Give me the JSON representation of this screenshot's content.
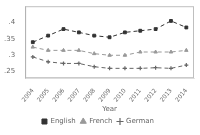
{
  "chart_data": {
    "type": "line",
    "xlabel": "Year",
    "x": [
      2004,
      2005,
      2006,
      2007,
      2008,
      2009,
      2010,
      2011,
      2012,
      2013,
      2014
    ],
    "series": [
      {
        "name": "English",
        "color": "#333333",
        "marker": "square",
        "line_style": "dashed",
        "values": [
          0.34,
          0.36,
          0.38,
          0.37,
          0.36,
          0.355,
          0.37,
          0.375,
          0.38,
          0.405,
          0.385
        ]
      },
      {
        "name": "French",
        "color": "#999999",
        "marker": "triangle",
        "line_style": "dashed",
        "values": [
          0.325,
          0.315,
          0.315,
          0.315,
          0.305,
          0.3,
          0.3,
          0.31,
          0.31,
          0.31,
          0.315
        ]
      },
      {
        "name": "German",
        "color": "#666666",
        "marker": "plus",
        "line_style": "dashed",
        "values": [
          0.295,
          0.28,
          0.275,
          0.275,
          0.265,
          0.26,
          0.26,
          0.26,
          0.262,
          0.26,
          0.27
        ]
      }
    ],
    "xlim": [
      2003.5,
      2014.5
    ],
    "xticks": [
      2004,
      2005,
      2006,
      2007,
      2008,
      2009,
      2010,
      2011,
      2012,
      2013,
      2014
    ],
    "ylim": [
      0.23,
      0.45
    ],
    "yticks": [
      {
        "value": 0.25,
        "label": ".25"
      },
      {
        "value": 0.3,
        "label": ".3"
      },
      {
        "value": 0.35,
        "label": ".35"
      },
      {
        "value": 0.4,
        "label": ".4"
      }
    ],
    "grid": false,
    "legend": "bottom"
  }
}
